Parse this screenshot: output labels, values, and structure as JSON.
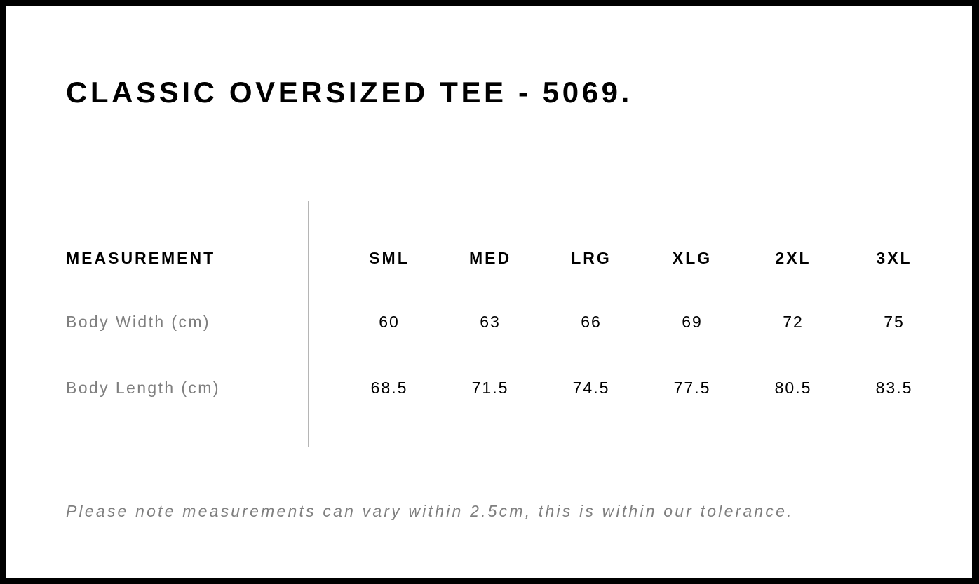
{
  "title": "CLASSIC OVERSIZED TEE - 5069.",
  "table": {
    "header_label": "MEASUREMENT",
    "sizes": [
      "SML",
      "MED",
      "LRG",
      "XLG",
      "2XL",
      "3XL"
    ],
    "rows": [
      {
        "label": "Body Width (cm)",
        "values": [
          "60",
          "63",
          "66",
          "69",
          "72",
          "75"
        ]
      },
      {
        "label": "Body Length (cm)",
        "values": [
          "68.5",
          "71.5",
          "74.5",
          "77.5",
          "80.5",
          "83.5"
        ]
      }
    ]
  },
  "note": "Please note measurements can vary within 2.5cm, this is within our tolerance.",
  "colors": {
    "frame": "#000000",
    "label_text": "#7f7f7f",
    "divider": "#b5b5b5"
  }
}
